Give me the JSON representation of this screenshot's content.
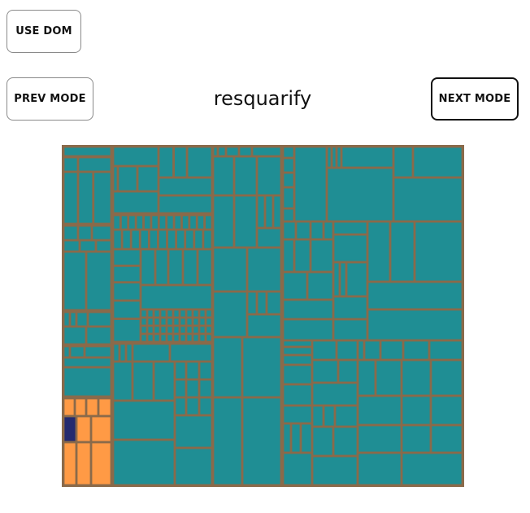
{
  "controls": {
    "use_dom_label": "USE DOM",
    "prev_mode_label": "PREV MODE",
    "next_mode_label": "NEXT MODE"
  },
  "mode_title": "resquarify",
  "colors": {
    "background": "#ffffff",
    "treemap_border": "#8a6a4a",
    "tile_default": "#1f8e94",
    "tile_highlight": "#ff9a45",
    "tile_selected": "#252b6f",
    "tile_stroke": "#8a6a4a"
  }
}
